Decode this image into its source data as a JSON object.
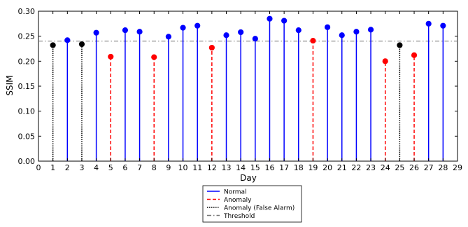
{
  "chart_data": {
    "type": "stem",
    "xlabel": "Day",
    "ylabel": "SSIM",
    "xlim": [
      0,
      29
    ],
    "ylim": [
      0.0,
      0.3
    ],
    "xticks": [
      "0",
      "1",
      "2",
      "3",
      "4",
      "5",
      "6",
      "7",
      "8",
      "9",
      "10",
      "11",
      "12",
      "13",
      "14",
      "15",
      "16",
      "17",
      "18",
      "19",
      "20",
      "21",
      "22",
      "23",
      "24",
      "25",
      "26",
      "27",
      "28",
      "29"
    ],
    "yticks": [
      "0.00",
      "0.05",
      "0.10",
      "0.15",
      "0.20",
      "0.25",
      "0.30"
    ],
    "threshold": 0.24,
    "series": [
      {
        "name": "Normal",
        "style": "solid",
        "color": "#0000ff",
        "x": [
          2,
          4,
          6,
          7,
          9,
          10,
          11,
          13,
          14,
          15,
          16,
          17,
          18,
          20,
          21,
          22,
          23,
          27,
          28
        ],
        "y": [
          0.242,
          0.257,
          0.262,
          0.259,
          0.249,
          0.267,
          0.271,
          0.252,
          0.258,
          0.245,
          0.285,
          0.281,
          0.262,
          0.268,
          0.252,
          0.259,
          0.263,
          0.275,
          0.271
        ]
      },
      {
        "name": "Anomaly",
        "style": "dashed",
        "color": "#ff0000",
        "x": [
          5,
          8,
          12,
          19,
          24,
          26
        ],
        "y": [
          0.209,
          0.208,
          0.227,
          0.241,
          0.2,
          0.212
        ]
      },
      {
        "name": "Anomaly (False Alarm)",
        "style": "dotted",
        "color": "#000000",
        "x": [
          1,
          3,
          25
        ],
        "y": [
          0.232,
          0.234,
          0.232
        ]
      },
      {
        "name": "Threshold",
        "style": "dashdot",
        "color": "#777777"
      }
    ],
    "legend_position": "bottom-center"
  }
}
